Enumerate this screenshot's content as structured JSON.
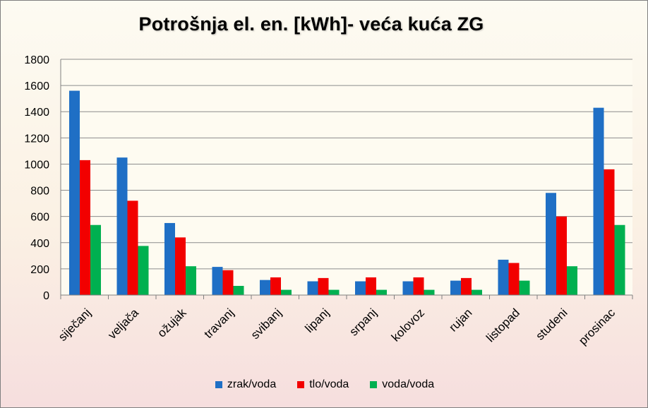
{
  "chart_data": {
    "type": "bar",
    "title": "Potrošnja el. en. [kWh]- veća kuća ZG",
    "xlabel": "",
    "ylabel": "",
    "ylim": [
      0,
      1800
    ],
    "yticks": [
      0,
      200,
      400,
      600,
      800,
      1000,
      1200,
      1400,
      1600,
      1800
    ],
    "grid": true,
    "legend_position": "bottom",
    "categories": [
      "siječanj",
      "veljača",
      "ožujak",
      "travanj",
      "svibanj",
      "lipanj",
      "srpanj",
      "kolovoz",
      "rujan",
      "listopad",
      "studeni",
      "prosinac"
    ],
    "series": [
      {
        "name": "zrak/voda",
        "color": "#1f6fc5",
        "values": [
          1560,
          1050,
          550,
          215,
          115,
          105,
          105,
          105,
          110,
          270,
          780,
          1430
        ]
      },
      {
        "name": "tlo/voda",
        "color": "#f20000",
        "values": [
          1030,
          720,
          440,
          190,
          135,
          130,
          135,
          135,
          130,
          245,
          600,
          960
        ]
      },
      {
        "name": "voda/voda",
        "color": "#00b050",
        "values": [
          535,
          375,
          220,
          70,
          40,
          40,
          40,
          40,
          40,
          110,
          220,
          535
        ]
      }
    ]
  }
}
